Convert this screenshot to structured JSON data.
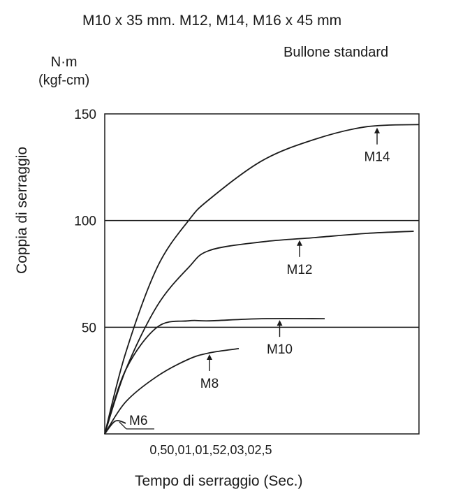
{
  "chart_data": {
    "type": "line",
    "title": "M10 x 35 mm. M12, M14, M16 x 45 mm",
    "subtitle": "Bullone standard",
    "y_unit": [
      "N·m",
      "(kgf-cm)"
    ],
    "ylabel": "Coppia di serraggio",
    "xlabel": "Tempo di serraggio (Sec.)",
    "x_tick_label": "0,50,01,01,52,03,02,5",
    "xlim": [
      0,
      3.0
    ],
    "ylim": [
      0,
      150
    ],
    "y_ticks": [
      50,
      100,
      150
    ],
    "grid": "horizontal",
    "series": [
      {
        "name": "M14",
        "x": [
          0,
          0.2,
          0.5,
          0.8,
          1.0,
          1.5,
          2.0,
          2.5,
          3.0
        ],
        "y": [
          0,
          38,
          78,
          100,
          110,
          128,
          138,
          144,
          145
        ],
        "arrow_x": 2.6
      },
      {
        "name": "M12",
        "x": [
          0,
          0.2,
          0.5,
          0.8,
          1.0,
          1.5,
          2.0,
          2.5,
          2.95
        ],
        "y": [
          0,
          30,
          60,
          78,
          86,
          90,
          92,
          94,
          95
        ],
        "arrow_x": 1.86
      },
      {
        "name": "M10",
        "x": [
          0,
          0.2,
          0.5,
          0.8,
          1.0,
          1.5,
          2.1
        ],
        "y": [
          0,
          30,
          50,
          53,
          53,
          54,
          54
        ],
        "arrow_x": 1.67
      },
      {
        "name": "M8",
        "x": [
          0,
          0.2,
          0.5,
          0.8,
          1.0,
          1.28
        ],
        "y": [
          0,
          15,
          27,
          35,
          38,
          40
        ],
        "arrow_x": 1.0
      },
      {
        "name": "M6",
        "x": [
          0,
          0.1,
          0.2
        ],
        "y": [
          0,
          6,
          5
        ],
        "arrow_x": 0.14
      }
    ]
  }
}
